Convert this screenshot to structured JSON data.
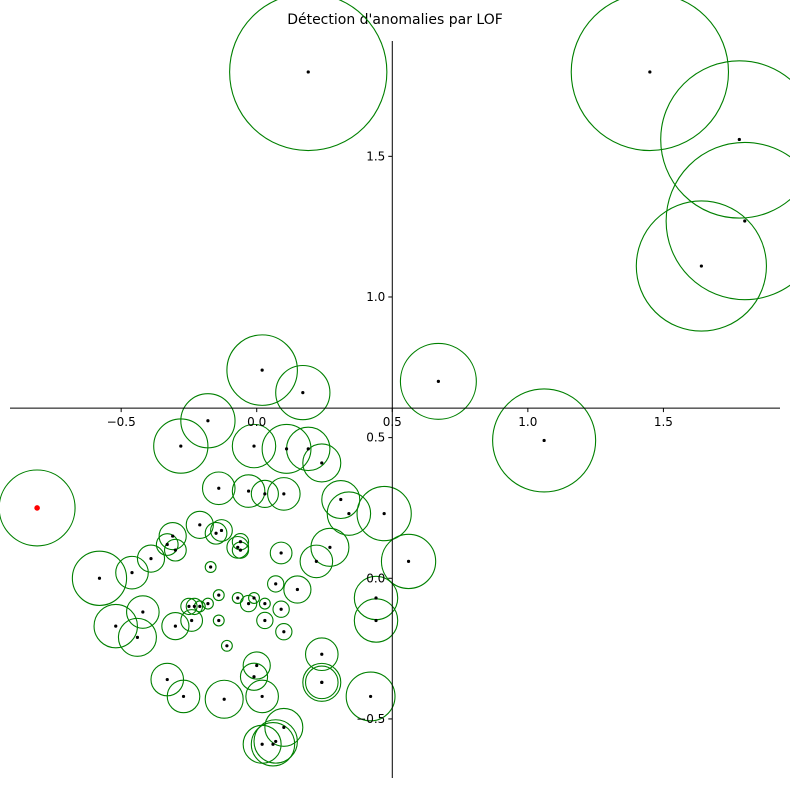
{
  "chart_data": {
    "type": "scatter",
    "title": "Détection d'anomalies par LOF",
    "xlabel": "",
    "ylabel": "",
    "xlim": [
      -0.91,
      1.93
    ],
    "ylim": [
      -0.71,
      1.91
    ],
    "grid": false,
    "spines": "centered",
    "x_ticks": [
      {
        "value": -0.5,
        "label": "−0.5"
      },
      {
        "value": 0.0,
        "label": "0.0"
      },
      {
        "value": 0.5,
        "label": "0.5"
      },
      {
        "value": 1.0,
        "label": "1.0"
      },
      {
        "value": 1.5,
        "label": "1.5"
      }
    ],
    "y_ticks": [
      {
        "value": -0.5,
        "label": "−0.5"
      },
      {
        "value": 0.0,
        "label": "0.0"
      },
      {
        "value": 0.5,
        "label": "0.5"
      },
      {
        "value": 1.0,
        "label": "1.0"
      },
      {
        "value": 1.5,
        "label": "1.5"
      }
    ],
    "colors": {
      "point": "#000000",
      "outlier_point": "#ff0000",
      "score_circle": "#008000"
    },
    "points_xy_score": [
      [
        0.19,
        1.8,
        0.29
      ],
      [
        1.45,
        1.8,
        0.29
      ],
      [
        1.78,
        1.56,
        0.29
      ],
      [
        1.8,
        1.27,
        0.29
      ],
      [
        1.64,
        1.11,
        0.24
      ],
      [
        0.02,
        0.74,
        0.13
      ],
      [
        0.17,
        0.66,
        0.1
      ],
      [
        0.67,
        0.7,
        0.14
      ],
      [
        1.06,
        0.49,
        0.19
      ],
      [
        -0.18,
        0.56,
        0.1
      ],
      [
        -0.28,
        0.47,
        0.1
      ],
      [
        -0.01,
        0.47,
        0.08
      ],
      [
        0.11,
        0.46,
        0.09
      ],
      [
        0.19,
        0.46,
        0.08
      ],
      [
        0.24,
        0.41,
        0.07
      ],
      [
        -0.14,
        0.32,
        0.06
      ],
      [
        -0.03,
        0.31,
        0.06
      ],
      [
        0.03,
        0.3,
        0.05
      ],
      [
        0.1,
        0.3,
        0.06
      ],
      [
        0.31,
        0.28,
        0.07
      ],
      [
        0.34,
        0.23,
        0.08
      ],
      [
        0.47,
        0.23,
        0.1
      ],
      [
        -0.21,
        0.19,
        0.05
      ],
      [
        -0.15,
        0.16,
        0.04
      ],
      [
        -0.13,
        0.17,
        0.04
      ],
      [
        -0.06,
        0.13,
        0.03
      ],
      [
        -0.07,
        0.11,
        0.04
      ],
      [
        -0.31,
        0.15,
        0.05
      ],
      [
        -0.33,
        0.12,
        0.04
      ],
      [
        -0.3,
        0.1,
        0.04
      ],
      [
        -0.06,
        0.1,
        0.03
      ],
      [
        0.09,
        0.09,
        0.04
      ],
      [
        0.27,
        0.11,
        0.07
      ],
      [
        -0.39,
        0.07,
        0.05
      ],
      [
        0.22,
        0.06,
        0.06
      ],
      [
        0.56,
        0.06,
        0.1
      ],
      [
        -0.17,
        0.04,
        0.02
      ],
      [
        -0.46,
        0.02,
        0.06
      ],
      [
        -0.58,
        0.0,
        0.1
      ],
      [
        0.07,
        -0.02,
        0.03
      ],
      [
        0.15,
        -0.04,
        0.05
      ],
      [
        -0.14,
        -0.06,
        0.02
      ],
      [
        0.44,
        -0.07,
        0.08
      ],
      [
        -0.07,
        -0.07,
        0.02
      ],
      [
        -0.01,
        -0.07,
        0.02
      ],
      [
        -0.18,
        -0.09,
        0.02
      ],
      [
        -0.03,
        -0.09,
        0.03
      ],
      [
        0.03,
        -0.09,
        0.02
      ],
      [
        -0.25,
        -0.1,
        0.03
      ],
      [
        -0.23,
        -0.1,
        0.03
      ],
      [
        -0.21,
        -0.1,
        0.02
      ],
      [
        0.09,
        -0.11,
        0.03
      ],
      [
        -0.42,
        -0.12,
        0.06
      ],
      [
        -0.24,
        -0.15,
        0.04
      ],
      [
        -0.14,
        -0.15,
        0.02
      ],
      [
        0.03,
        -0.15,
        0.03
      ],
      [
        0.44,
        -0.15,
        0.08
      ],
      [
        -0.52,
        -0.17,
        0.08
      ],
      [
        -0.3,
        -0.17,
        0.05
      ],
      [
        0.1,
        -0.19,
        0.03
      ],
      [
        -0.44,
        -0.21,
        0.07
      ],
      [
        -0.11,
        -0.24,
        0.02
      ],
      [
        0.24,
        -0.27,
        0.06
      ],
      [
        0.0,
        -0.31,
        0.05
      ],
      [
        -0.33,
        -0.36,
        0.06
      ],
      [
        -0.01,
        -0.35,
        0.05
      ],
      [
        0.24,
        -0.37,
        0.07
      ],
      [
        0.24,
        -0.37,
        0.06
      ],
      [
        -0.27,
        -0.42,
        0.06
      ],
      [
        0.02,
        -0.42,
        0.06
      ],
      [
        0.42,
        -0.42,
        0.09
      ],
      [
        -0.12,
        -0.43,
        0.07
      ],
      [
        0.1,
        -0.53,
        0.07
      ],
      [
        0.07,
        -0.58,
        0.08
      ],
      [
        0.06,
        -0.59,
        0.08
      ],
      [
        0.02,
        -0.59,
        0.07
      ]
    ],
    "outlier": {
      "x": -0.81,
      "y": 0.25,
      "score": 0.14
    }
  }
}
